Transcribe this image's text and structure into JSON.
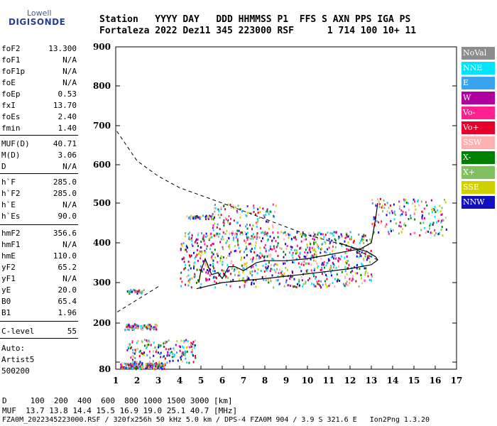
{
  "logo": {
    "line1": "Lowell",
    "line2": "DIGISONDE"
  },
  "header": {
    "line1": "Station   YYYY DAY   DDD HHMMSS P1  FFS S AXN PPS IGA PS",
    "line2": "Fortaleza 2022 Dez11 345 223000 RSF      1 714 100 10+ 11"
  },
  "params": [
    {
      "k": "foF2",
      "v": "13.300"
    },
    {
      "k": "foF1",
      "v": "N/A"
    },
    {
      "k": "foF1p",
      "v": "N/A"
    },
    {
      "k": "foE",
      "v": "N/A"
    },
    {
      "k": "foEp",
      "v": "0.53"
    },
    {
      "k": "fxI",
      "v": "13.70"
    },
    {
      "k": "foEs",
      "v": "2.40"
    },
    {
      "k": "fmin",
      "v": "1.40"
    },
    {
      "k": "MUF(D)",
      "v": "40.71"
    },
    {
      "k": "M(D)",
      "v": "3.06"
    },
    {
      "k": "D",
      "v": "N/A"
    },
    {
      "k": "h`F",
      "v": "285.0"
    },
    {
      "k": "h`F2",
      "v": "285.0"
    },
    {
      "k": "h`E",
      "v": "N/A"
    },
    {
      "k": "h`Es",
      "v": "90.0"
    },
    {
      "k": "hmF2",
      "v": "356.6"
    },
    {
      "k": "hmF1",
      "v": "N/A"
    },
    {
      "k": "hmE",
      "v": "110.0"
    },
    {
      "k": "yF2",
      "v": "65.2"
    },
    {
      "k": "yF1",
      "v": "N/A"
    },
    {
      "k": "yE",
      "v": "20.0"
    },
    {
      "k": "B0",
      "v": "65.4"
    },
    {
      "k": "B1",
      "v": "1.96"
    },
    {
      "k": "C-level",
      "v": "55"
    }
  ],
  "auto": {
    "l1": "Auto:",
    "l2": "Artist5",
    "l3": "500200"
  },
  "bottom": {
    "d_row": "D     100  200  400  600  800 1000 1500 3000 [km]",
    "muf_row": "MUF  13.7 13.8 14.4 15.5 16.9 19.0 25.1 40.7 [MHz]",
    "file_row": "FZA0M_2022345223000.RSF / 320fx256h 50 kHz 5.0 km / DPS-4 FZA0M 904 / 3.9 S 321.6 E   Ion2Png 1.3.20"
  },
  "legend": [
    {
      "label": "NoVal",
      "color": "#8c8c8c"
    },
    {
      "label": "NNE",
      "color": "#00e5ff"
    },
    {
      "label": "E",
      "color": "#3aa3f0"
    },
    {
      "label": "W",
      "color": "#b000a0"
    },
    {
      "label": "Vo-",
      "color": "#ff2090"
    },
    {
      "label": "Vo+",
      "color": "#e8002c"
    },
    {
      "label": "SSW",
      "color": "#ffb0b0"
    },
    {
      "label": "X-",
      "color": "#008000"
    },
    {
      "label": "X+",
      "color": "#80c060"
    },
    {
      "label": "SSE",
      "color": "#d0d000"
    },
    {
      "label": "NNW",
      "color": "#1010c0"
    }
  ],
  "chart_data": {
    "type": "scatter",
    "xlim": [
      1,
      17
    ],
    "ylim": [
      80,
      900
    ],
    "x_ticks": [
      1,
      2,
      3,
      4,
      5,
      6,
      7,
      8,
      9,
      10,
      11,
      12,
      13,
      14,
      15,
      16,
      17
    ],
    "y_ticks": [
      80,
      100,
      200,
      300,
      400,
      500,
      600,
      700,
      800,
      900
    ],
    "y_tick_labels": [
      "80",
      "",
      "200",
      "300",
      "400",
      "500",
      "600",
      "700",
      "800",
      "900"
    ],
    "traces": {
      "virtual_height": [
        [
          4.9,
          300
        ],
        [
          5.0,
          330
        ],
        [
          5.2,
          360
        ],
        [
          5.5,
          320
        ],
        [
          5.8,
          325
        ],
        [
          6.0,
          310
        ],
        [
          6.3,
          340
        ],
        [
          6.6,
          340
        ],
        [
          7.0,
          330
        ],
        [
          7.3,
          340
        ],
        [
          7.6,
          350
        ],
        [
          8.0,
          355
        ],
        [
          9.0,
          355
        ],
        [
          10,
          360
        ],
        [
          11,
          370
        ],
        [
          12,
          380
        ],
        [
          12.5,
          385
        ],
        [
          13.0,
          400
        ],
        [
          13.2,
          460
        ],
        [
          13.3,
          500
        ]
      ],
      "profile": [
        [
          4.8,
          285
        ],
        [
          6,
          300
        ],
        [
          8,
          310
        ],
        [
          10,
          322
        ],
        [
          12,
          335
        ],
        [
          13,
          345
        ],
        [
          13.3,
          357
        ],
        [
          13.2,
          365
        ],
        [
          12.8,
          378
        ],
        [
          12,
          390
        ],
        [
          11.5,
          400
        ]
      ],
      "extrapolation": [
        [
          13.3,
          357
        ],
        [
          12,
          390
        ],
        [
          10,
          420
        ],
        [
          8,
          460
        ],
        [
          6,
          500
        ],
        [
          4,
          540
        ],
        [
          3,
          570
        ],
        [
          2,
          610
        ],
        [
          1,
          690
        ],
        [
          3,
          290
        ],
        [
          1,
          225
        ]
      ]
    },
    "echo_clusters": [
      {
        "x": [
          1.2,
          3.3
        ],
        "y": [
          83,
          100
        ],
        "n": 200
      },
      {
        "x": [
          1.4,
          3.0
        ],
        "y": [
          185,
          200
        ],
        "n": 80
      },
      {
        "x": [
          1.5,
          4.8
        ],
        "y": [
          100,
          160
        ],
        "n": 160
      },
      {
        "x": [
          4.0,
          13.0
        ],
        "y": [
          290,
          430
        ],
        "n": 900
      },
      {
        "x": [
          4.3,
          5.6
        ],
        "y": [
          462,
          472
        ],
        "n": 40
      },
      {
        "x": [
          5.5,
          8.5
        ],
        "y": [
          420,
          500
        ],
        "n": 120
      },
      {
        "x": [
          13.0,
          16.5
        ],
        "y": [
          420,
          515
        ],
        "n": 160
      },
      {
        "x": [
          1.5,
          2.3
        ],
        "y": [
          275,
          285
        ],
        "n": 30
      }
    ]
  }
}
